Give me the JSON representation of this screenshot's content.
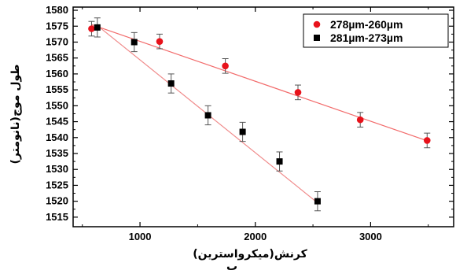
{
  "chart_data": {
    "type": "scatter",
    "xlabel": "کرنش(میکرواسترین)",
    "ylabel": "طول موج(نانومتر)",
    "sublabel": "ب",
    "xlim": [
      420,
      3720
    ],
    "ylim": [
      1512,
      1581
    ],
    "xticks": [
      1000,
      2000,
      3000
    ],
    "yticks": [
      1515,
      1520,
      1525,
      1530,
      1535,
      1540,
      1545,
      1550,
      1555,
      1560,
      1565,
      1570,
      1575,
      1580
    ],
    "legend_position": "top-right",
    "series": [
      {
        "name": "278µm-260µm",
        "color": "#e8121b",
        "marker": "circle",
        "x": [
          580,
          1170,
          1740,
          2370,
          2910,
          3490
        ],
        "y": [
          1574.2,
          1570.2,
          1562.5,
          1554.2,
          1545.6,
          1539.1
        ],
        "err": [
          2.3,
          2.3,
          2.3,
          2.3,
          2.3,
          2.3
        ],
        "fit": [
          [
            580,
            1575.5
          ],
          [
            3490,
            1539.0
          ]
        ]
      },
      {
        "name": "281µm-273µm",
        "color": "#000000",
        "marker": "square",
        "x": [
          630,
          950,
          1270,
          1590,
          1890,
          2210,
          2540
        ],
        "y": [
          1574.6,
          1570.0,
          1557.0,
          1547.0,
          1541.8,
          1532.5,
          1520.0
        ],
        "err": [
          3.0,
          3.0,
          3.0,
          3.0,
          3.0,
          3.0,
          3.0
        ],
        "fit": [
          [
            630,
            1575.2
          ],
          [
            2540,
            1519.5
          ]
        ]
      }
    ]
  }
}
